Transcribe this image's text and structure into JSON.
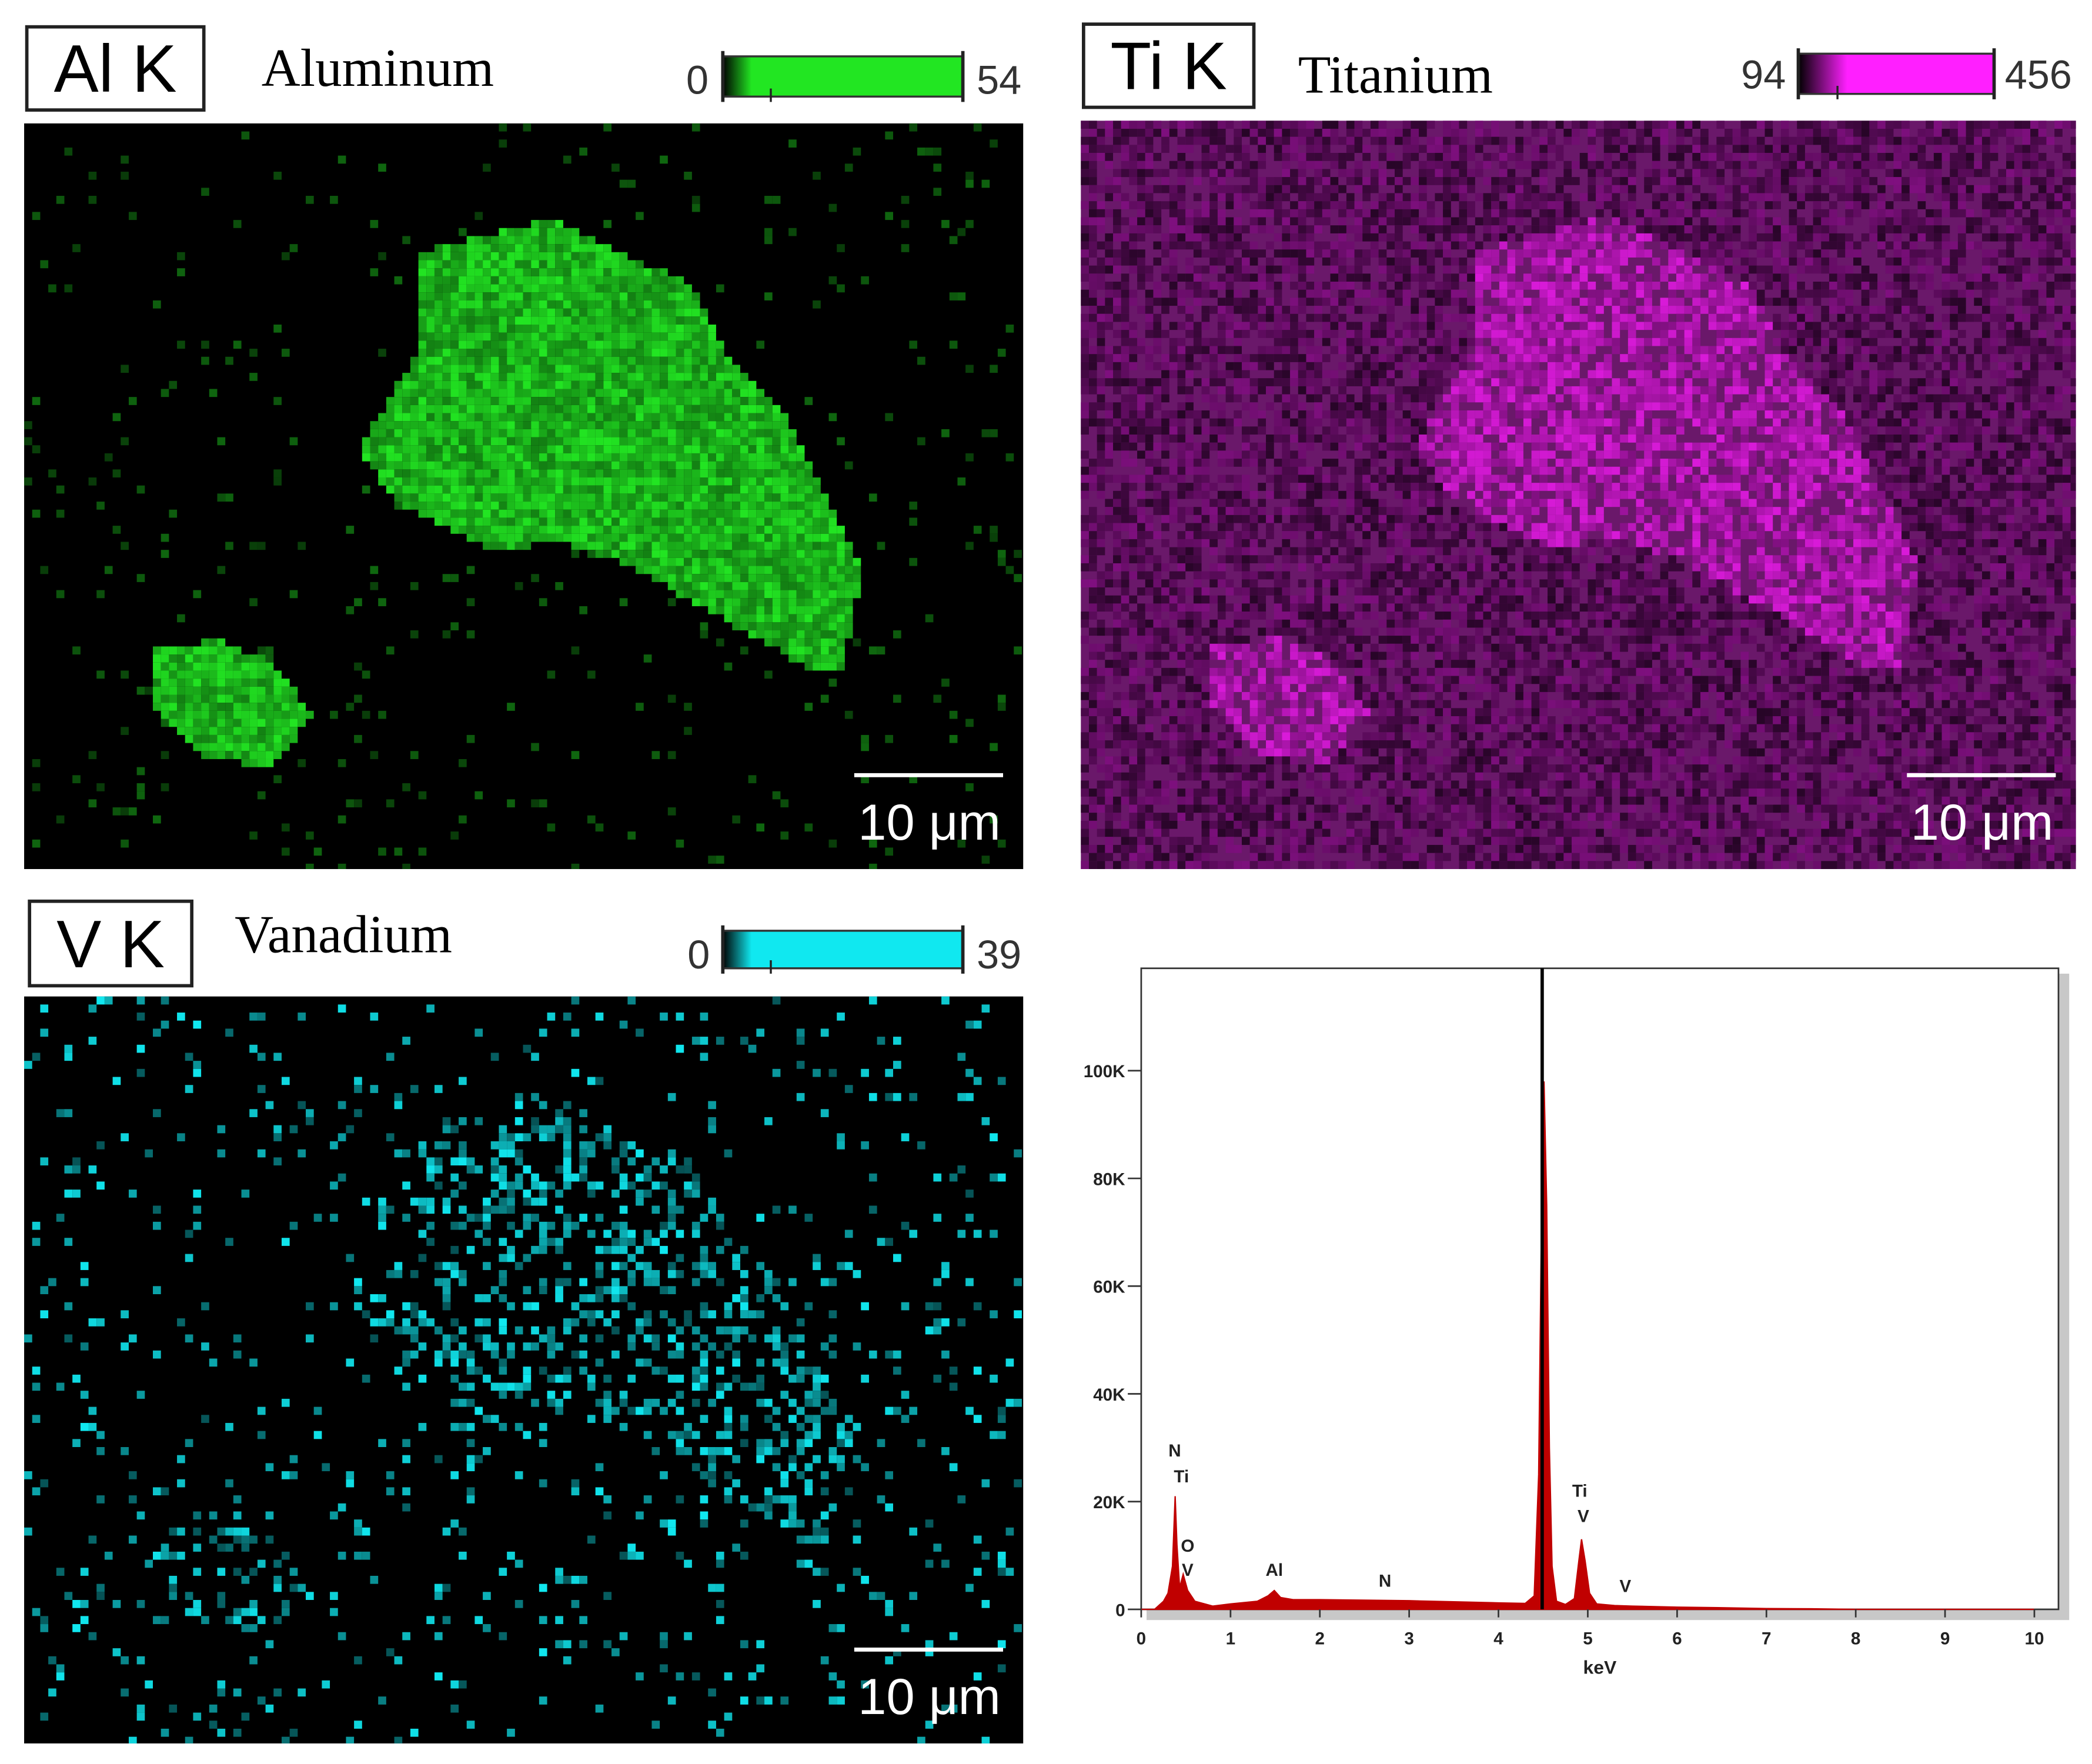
{
  "panels": [
    {
      "label": "Al K",
      "element": "Aluminum",
      "scale_min": 0,
      "scale_max": 54,
      "scale_bar": "10 μm",
      "color": "#22e622"
    },
    {
      "label": "Ti K",
      "element": "Titanium",
      "scale_min": 94,
      "scale_max": 456,
      "scale_bar": "10 μm",
      "color": "#ff1fff"
    },
    {
      "label": "V K",
      "element": "Vanadium",
      "scale_min": 0,
      "scale_max": 39,
      "scale_bar": "10 μm",
      "color": "#10e8f0"
    }
  ],
  "chart_data": {
    "type": "area",
    "color": "#c00000",
    "xlabel": "keV",
    "x": [
      0,
      0.15,
      0.25,
      0.3,
      0.35,
      0.38,
      0.4,
      0.43,
      0.47,
      0.52,
      0.6,
      0.8,
      1.0,
      1.3,
      1.42,
      1.49,
      1.56,
      1.7,
      2.0,
      2.5,
      3.0,
      3.5,
      4.0,
      4.3,
      4.4,
      4.45,
      4.48,
      4.51,
      4.54,
      4.57,
      4.6,
      4.65,
      4.75,
      4.85,
      4.9,
      4.93,
      4.97,
      5.02,
      5.1,
      5.3,
      5.5,
      6.0,
      6.5,
      7.0,
      7.5,
      8,
      10
    ],
    "values": [
      0,
      0,
      1500,
      3000,
      8000,
      21000,
      12000,
      4000,
      6500,
      3500,
      1500,
      600,
      1000,
      1500,
      2500,
      3500,
      2200,
      1800,
      1800,
      1700,
      1600,
      1400,
      1200,
      1100,
      2500,
      25000,
      70000,
      98000,
      75000,
      30000,
      8000,
      1500,
      900,
      2000,
      9000,
      13000,
      9000,
      3000,
      1000,
      700,
      600,
      400,
      300,
      150,
      100,
      0,
      0
    ],
    "xlim": [
      0,
      10.27
    ],
    "ylim": [
      0,
      119000
    ],
    "xticks": [
      0,
      1,
      2,
      3,
      4,
      5,
      6,
      7,
      8,
      9,
      10
    ],
    "yticks": [
      0,
      {
        "value": 20000,
        "label": "20K"
      },
      {
        "value": 40000,
        "label": "40K"
      },
      {
        "value": 60000,
        "label": "60K"
      },
      {
        "value": 80000,
        "label": "80K"
      },
      {
        "value": 100000,
        "label": "100K"
      }
    ],
    "annotations": [
      {
        "text": "N",
        "x": 0.375,
        "y": 28400
      },
      {
        "text": "Ti",
        "x": 0.45,
        "y": 23600
      },
      {
        "text": "O",
        "x": 0.52,
        "y": 10700
      },
      {
        "text": "V",
        "x": 0.52,
        "y": 6200
      },
      {
        "text": "Al",
        "x": 1.49,
        "y": 6200
      },
      {
        "text": "N",
        "x": 2.73,
        "y": 4200
      },
      {
        "text": "Ti",
        "x": 4.91,
        "y": 20900
      },
      {
        "text": "V",
        "x": 4.95,
        "y": 16200
      },
      {
        "text": "V",
        "x": 5.42,
        "y": 3200
      }
    ]
  }
}
